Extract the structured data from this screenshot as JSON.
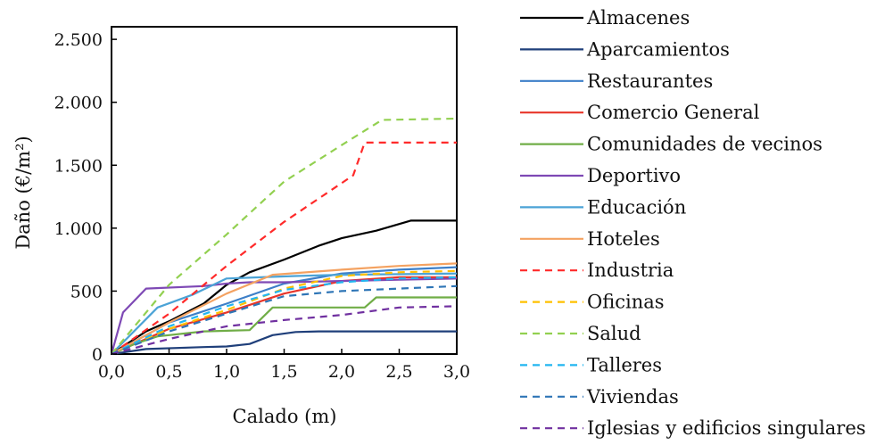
{
  "chart_data": {
    "type": "line",
    "xlabel": "Calado (m)",
    "ylabel": "Daño (€/m²)",
    "xlim": [
      0,
      3
    ],
    "ylim": [
      0,
      2600
    ],
    "xticks": [
      0,
      0.5,
      1,
      1.5,
      2,
      2.5,
      3
    ],
    "xtick_labels": [
      "0,0",
      "0,5",
      "1,0",
      "1,5",
      "2,0",
      "2,5",
      "3,0"
    ],
    "yticks": [
      0,
      500,
      1000,
      1500,
      2000,
      2500
    ],
    "ytick_labels": [
      "0",
      "500",
      "1.000",
      "1.500",
      "2.000",
      "2.500"
    ],
    "grid": false,
    "legend_position": "right",
    "series": [
      {
        "name": "Almacenes",
        "color": "#000000",
        "dash": "solid",
        "x": [
          0,
          0.3,
          0.5,
          0.8,
          1.0,
          1.2,
          1.5,
          1.8,
          2.0,
          2.3,
          2.6,
          3.0
        ],
        "y": [
          0,
          180,
          260,
          400,
          550,
          650,
          750,
          860,
          920,
          980,
          1060,
          1060
        ]
      },
      {
        "name": "Aparcamientos",
        "color": "#1f3f7a",
        "dash": "solid",
        "x": [
          0,
          0.3,
          0.8,
          1.0,
          1.2,
          1.4,
          1.6,
          1.8,
          3.0
        ],
        "y": [
          0,
          40,
          55,
          60,
          80,
          150,
          175,
          180,
          180
        ]
      },
      {
        "name": "Restaurantes",
        "color": "#3d7fc8",
        "dash": "solid",
        "x": [
          0,
          0.5,
          1.0,
          1.5,
          2.0,
          2.5,
          3.0
        ],
        "y": [
          0,
          250,
          400,
          560,
          640,
          670,
          690
        ]
      },
      {
        "name": "Comercio General",
        "color": "#e8362a",
        "dash": "solid",
        "x": [
          0,
          0.5,
          1.0,
          1.5,
          2.0,
          2.5,
          3.0
        ],
        "y": [
          0,
          200,
          330,
          480,
          580,
          610,
          610
        ]
      },
      {
        "name": "Comunidades de vecinos",
        "color": "#70ad47",
        "dash": "solid",
        "x": [
          0,
          0.2,
          0.4,
          0.8,
          1.2,
          1.4,
          1.6,
          2.2,
          2.3,
          3.0
        ],
        "y": [
          0,
          80,
          140,
          180,
          190,
          370,
          370,
          370,
          450,
          450
        ]
      },
      {
        "name": "Deportivo",
        "color": "#7e49b5",
        "dash": "solid",
        "x": [
          0,
          0.1,
          0.3,
          0.8,
          1.0,
          1.2,
          1.5,
          2.0,
          2.5,
          3.0
        ],
        "y": [
          0,
          330,
          520,
          540,
          560,
          570,
          570,
          580,
          590,
          600
        ]
      },
      {
        "name": "Educación",
        "color": "#4ba3d6",
        "dash": "solid",
        "x": [
          0,
          0.4,
          0.7,
          1.0,
          1.3,
          1.6,
          2.0,
          3.0
        ],
        "y": [
          0,
          370,
          470,
          600,
          610,
          620,
          630,
          640
        ]
      },
      {
        "name": "Hoteles",
        "color": "#f4a261",
        "dash": "solid",
        "x": [
          0,
          0.5,
          1.0,
          1.4,
          2.0,
          2.5,
          3.0
        ],
        "y": [
          0,
          250,
          480,
          630,
          670,
          700,
          720
        ]
      },
      {
        "name": "Industria",
        "color": "#ff2a2a",
        "dash": "dashed",
        "x": [
          0,
          0.5,
          1.0,
          1.5,
          2.1,
          2.2,
          2.5,
          3.0
        ],
        "y": [
          0,
          320,
          700,
          1050,
          1420,
          1680,
          1680,
          1680
        ]
      },
      {
        "name": "Oficinas",
        "color": "#ffc000",
        "dash": "dashed",
        "x": [
          0,
          0.5,
          1.0,
          1.5,
          2.0,
          2.5,
          3.0
        ],
        "y": [
          0,
          200,
          350,
          520,
          620,
          650,
          660
        ]
      },
      {
        "name": "Salud",
        "color": "#92d050",
        "dash": "dashed",
        "x": [
          0,
          0.5,
          1.0,
          1.5,
          2.0,
          2.35,
          3.0
        ],
        "y": [
          0,
          550,
          950,
          1370,
          1660,
          1860,
          1870
        ]
      },
      {
        "name": "Talleres",
        "color": "#22b5f0",
        "dash": "dashed",
        "x": [
          0,
          0.5,
          1.0,
          1.5,
          2.0,
          2.5,
          3.0
        ],
        "y": [
          0,
          220,
          380,
          510,
          570,
          600,
          610
        ]
      },
      {
        "name": "Viviendas",
        "color": "#2e75b6",
        "dash": "dashed",
        "x": [
          0,
          0.5,
          1.0,
          1.5,
          2.0,
          2.5,
          3.0
        ],
        "y": [
          0,
          180,
          320,
          460,
          500,
          520,
          540
        ]
      },
      {
        "name": "Iglesias y edificios singulares",
        "color": "#7030a0",
        "dash": "dashed",
        "x": [
          0,
          0.5,
          1.0,
          1.5,
          2.0,
          2.5,
          3.0
        ],
        "y": [
          0,
          120,
          220,
          270,
          310,
          370,
          380
        ]
      }
    ]
  }
}
